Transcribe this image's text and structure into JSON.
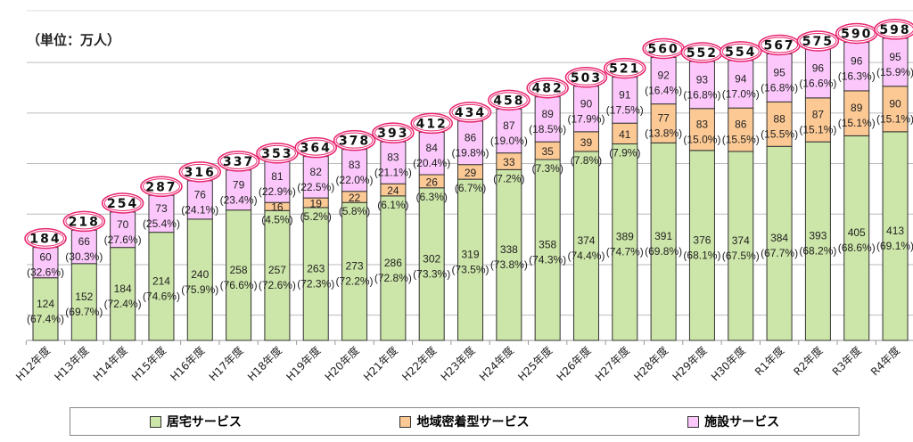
{
  "unit_label": "（単位：万人）",
  "chart_data": {
    "type": "bar",
    "stacked": true,
    "categories": [
      "H12年度",
      "H13年度",
      "H14年度",
      "H15年度",
      "H16年度",
      "H17年度",
      "H18年度",
      "H19年度",
      "H20年度",
      "H21年度",
      "H22年度",
      "H23年度",
      "H24年度",
      "H25年度",
      "H26年度",
      "H27年度",
      "H28年度",
      "H29年度",
      "H30年度",
      "R1年度",
      "R2年度",
      "R3年度",
      "R4年度"
    ],
    "series": [
      {
        "name": "居宅サービス",
        "color": "#cce5a8",
        "values": [
          124,
          152,
          184,
          214,
          240,
          258,
          257,
          263,
          273,
          286,
          302,
          319,
          338,
          358,
          374,
          389,
          391,
          376,
          374,
          384,
          393,
          405,
          413
        ],
        "percents": [
          "67.4%",
          "69.7%",
          "72.4%",
          "74.6%",
          "75.9%",
          "76.6%",
          "72.6%",
          "72.3%",
          "72.2%",
          "72.8%",
          "73.3%",
          "73.5%",
          "73.8%",
          "74.3%",
          "74.4%",
          "74.7%",
          "69.8%",
          "68.1%",
          "67.5%",
          "67.7%",
          "68.2%",
          "68.6%",
          "69.1%"
        ]
      },
      {
        "name": "地域密着型サービス",
        "color": "#fcc994",
        "values": [
          null,
          null,
          null,
          null,
          null,
          null,
          16,
          19,
          22,
          24,
          26,
          29,
          33,
          35,
          39,
          41,
          77,
          83,
          86,
          88,
          87,
          89,
          90
        ],
        "percents": [
          null,
          null,
          null,
          null,
          null,
          null,
          "4.5%",
          "5.2%",
          "5.8%",
          "6.1%",
          "6.3%",
          "6.7%",
          "7.2%",
          "7.3%",
          "7.8%",
          "7.9%",
          "13.8%",
          "15.0%",
          "15.5%",
          "15.5%",
          "15.1%",
          "15.1%",
          "15.1%"
        ]
      },
      {
        "name": "施設サービス",
        "color": "#fcc8fc",
        "values": [
          60,
          66,
          70,
          73,
          76,
          79,
          81,
          82,
          83,
          83,
          84,
          86,
          87,
          89,
          90,
          91,
          92,
          93,
          94,
          95,
          96,
          96,
          95
        ],
        "percents": [
          "32.6%",
          "30.3%",
          "27.6%",
          "25.4%",
          "24.1%",
          "23.4%",
          "22.9%",
          "22.5%",
          "22.0%",
          "21.1%",
          "20.4%",
          "19.8%",
          "19.0%",
          "18.5%",
          "17.9%",
          "17.5%",
          "16.4%",
          "16.8%",
          "17.0%",
          "16.8%",
          "16.6%",
          "16.3%",
          "15.9%"
        ]
      }
    ],
    "totals": [
      184,
      218,
      254,
      287,
      316,
      337,
      353,
      364,
      378,
      393,
      412,
      434,
      458,
      482,
      503,
      521,
      560,
      552,
      554,
      567,
      575,
      590,
      598
    ],
    "gridlines": [
      50,
      150,
      250,
      350,
      450,
      550
    ],
    "ylim": [
      0,
      600
    ],
    "grid": true,
    "legend_position": "bottom",
    "total_highlight_color": "#e8246e"
  }
}
